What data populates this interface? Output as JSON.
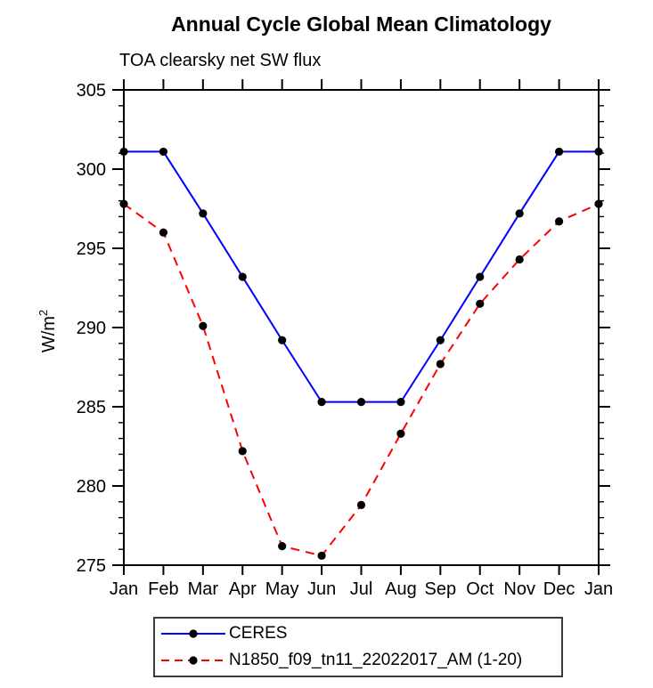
{
  "title": "Annual Cycle Global Mean Climatology",
  "subtitle": "TOA clearsky net SW flux",
  "y_axis_title": {
    "base": "W/m",
    "sup": "2"
  },
  "chart_data": {
    "type": "line",
    "title": "Annual Cycle Global Mean Climatology",
    "subtitle": "TOA clearsky net SW flux",
    "ylabel": "W/m^2",
    "xlabel": "",
    "categories": [
      "Jan",
      "Feb",
      "Mar",
      "Apr",
      "May",
      "Jun",
      "Jul",
      "Aug",
      "Sep",
      "Oct",
      "Nov",
      "Dec",
      "Jan"
    ],
    "ylim": [
      275,
      305
    ],
    "y_major_ticks": [
      275,
      280,
      285,
      290,
      295,
      300,
      305
    ],
    "y_minor_tick_step": 1,
    "grid": false,
    "legend_position": "bottom",
    "series": [
      {
        "name": "CERES",
        "color": "#0000ff",
        "line_style": "solid",
        "marker": "circle",
        "marker_color": "#000000",
        "values": [
          301.1,
          301.1,
          297.2,
          293.2,
          289.2,
          285.3,
          285.3,
          285.3,
          289.2,
          293.2,
          297.2,
          301.1,
          301.1
        ]
      },
      {
        "name": "N1850_f09_tn11_22022017_AM (1-20)",
        "color": "#ff0000",
        "line_style": "dashed",
        "marker": "circle",
        "marker_color": "#000000",
        "values": [
          297.8,
          296.0,
          290.1,
          282.2,
          276.2,
          275.6,
          278.8,
          283.3,
          287.7,
          291.5,
          294.3,
          296.7,
          297.8
        ]
      }
    ]
  }
}
